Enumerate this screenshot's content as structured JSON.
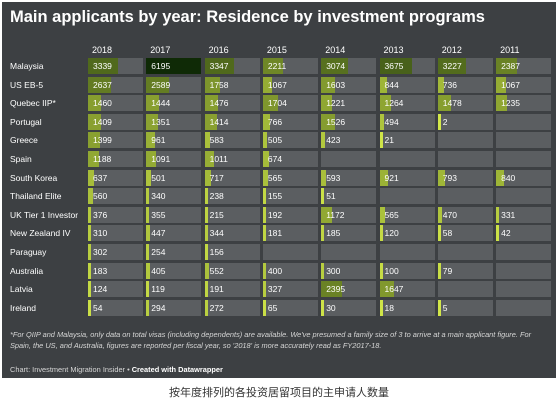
{
  "title": "Main applicants by year: Residence by investment programs",
  "footnote": "*For QIIP and Malaysia, only data on total visas (including dependents) are available. We've presumed a family size of 3 to arrive at a main applicant figure. For Spain, the US, and Australia, figures are reported per fiscal year, so '2018' is more accurately read as FY2017-18.",
  "source_prefix": "Chart: Investment Migration Insider • ",
  "source_tool": "Created with Datawrapper",
  "caption": "按年度排列的各投资居留项目的主申请人数量",
  "colors": {
    "panel_bg": "#3d4043",
    "cell_bg": "#5b5e61",
    "scale_low": "#d4e94a",
    "scale_high": "#0f2a06"
  },
  "chart_data": {
    "type": "table",
    "columns": [
      "2018",
      "2017",
      "2016",
      "2015",
      "2014",
      "2013",
      "2012",
      "2011"
    ],
    "color_scale_max": 6195,
    "rows": [
      {
        "label": "Malaysia",
        "values": [
          "3339",
          "6195",
          "3347",
          "2211",
          "3074",
          "3675",
          "3227",
          "2387"
        ]
      },
      {
        "label": "US EB-5",
        "values": [
          "2637",
          "2589",
          "1758",
          "1067",
          "1603",
          "844",
          "736",
          "1067"
        ]
      },
      {
        "label": "Quebec IIP*",
        "values": [
          "1460",
          "1444",
          "1476",
          "1704",
          "1221",
          "1264",
          "1478",
          "1235"
        ]
      },
      {
        "label": "Portugal",
        "values": [
          "1409",
          "1351",
          "1414",
          "766",
          "1526",
          "494",
          "2",
          ""
        ]
      },
      {
        "label": "Greece",
        "values": [
          "1399",
          "961",
          "583",
          "505",
          "423",
          "21",
          "",
          ""
        ]
      },
      {
        "label": "Spain",
        "values": [
          "1188",
          "1091",
          "1011",
          "674",
          "",
          "",
          "",
          ""
        ]
      },
      {
        "label": "South Korea",
        "values": [
          "637",
          "501",
          "717",
          "565",
          "593",
          "921",
          "793",
          "840"
        ]
      },
      {
        "label": "Thailand Elite",
        "values": [
          "560",
          "340",
          "238",
          "155",
          "51",
          "",
          "",
          ""
        ]
      },
      {
        "label": "UK Tier 1 Investor",
        "values": [
          "376",
          "355",
          "215",
          "192",
          "1172",
          "565",
          "470",
          "331"
        ]
      },
      {
        "label": "New Zealand IV",
        "values": [
          "310",
          "447",
          "344",
          "181",
          "185",
          "120",
          "58",
          "42"
        ]
      },
      {
        "label": "Paraguay",
        "values": [
          "302",
          "254",
          "156",
          "",
          "",
          "",
          "",
          ""
        ]
      },
      {
        "label": "Australia",
        "values": [
          "183",
          "405",
          "552",
          "400",
          "300",
          "100",
          "79",
          ""
        ]
      },
      {
        "label": "Latvia",
        "values": [
          "124",
          "119",
          "191",
          "327",
          "2395",
          "1647",
          "",
          ""
        ]
      },
      {
        "label": "Ireland",
        "values": [
          "54",
          "294",
          "272",
          "65",
          "30",
          "18",
          "5",
          ""
        ]
      }
    ]
  }
}
